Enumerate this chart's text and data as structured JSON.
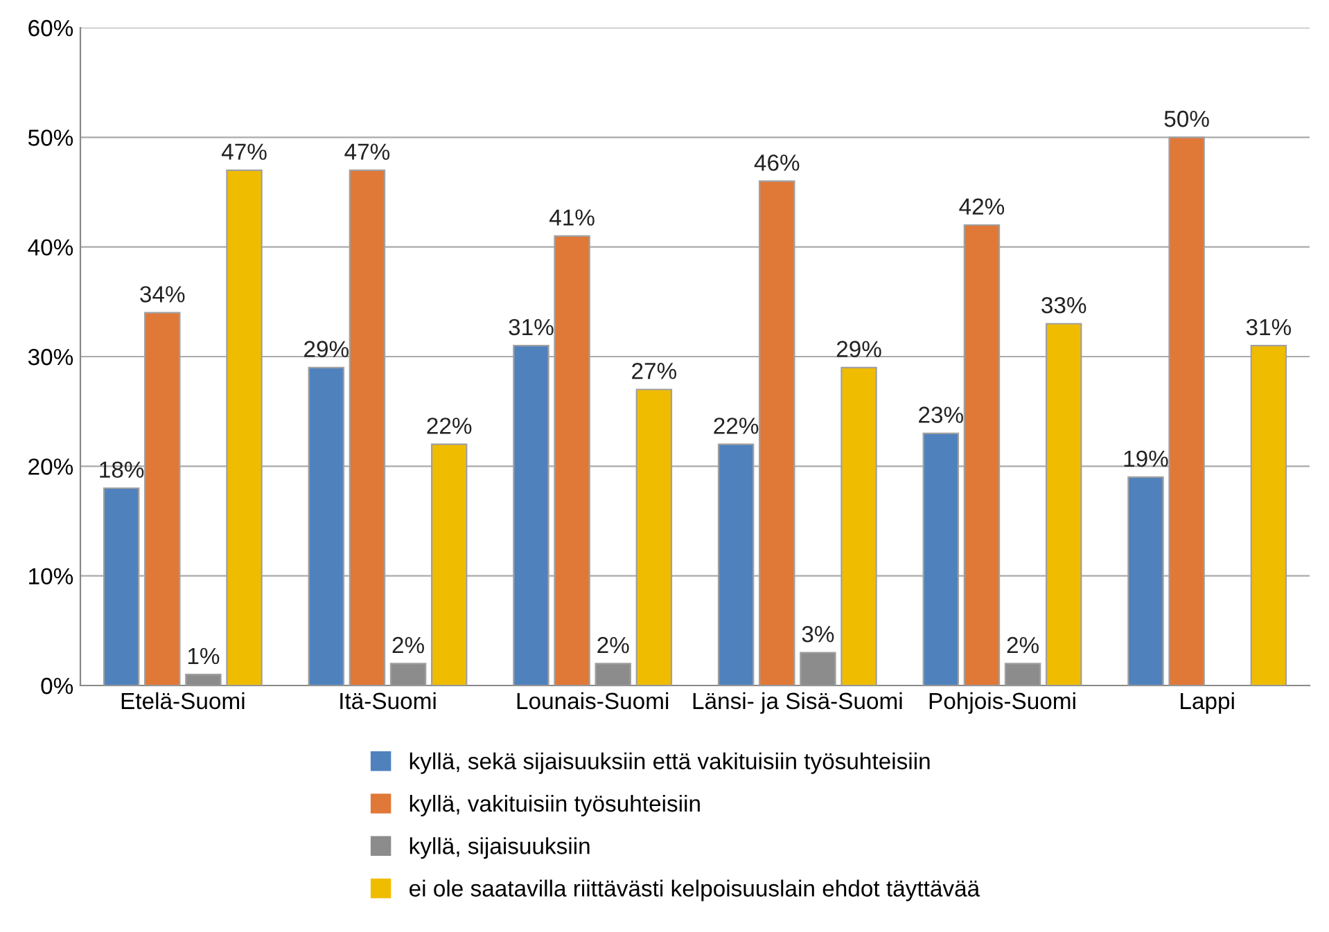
{
  "chart_data": {
    "type": "bar",
    "categories": [
      "Etelä-Suomi",
      "Itä-Suomi",
      "Lounais-Suomi",
      "Länsi- ja Sisä-Suomi",
      "Pohjois-Suomi",
      "Lappi"
    ],
    "series": [
      {
        "name": "kyllä, sekä sijaisuuksiin että vakituisiin työsuhteisiin",
        "color": "#4f81bd",
        "values": [
          18,
          29,
          31,
          22,
          23,
          19
        ],
        "value_labels": [
          "18%",
          "29%",
          "31%",
          "22%",
          "23%",
          "19%"
        ]
      },
      {
        "name": "kyllä, vakituisiin työsuhteisiin",
        "color": "#e07838",
        "values": [
          34,
          47,
          41,
          46,
          42,
          50
        ],
        "value_labels": [
          "34%",
          "47%",
          "41%",
          "46%",
          "42%",
          "50%"
        ]
      },
      {
        "name": "kyllä, sijaisuuksiin",
        "color": "#8c8c8c",
        "values": [
          1,
          2,
          2,
          3,
          2,
          null
        ],
        "value_labels": [
          "1%",
          "2%",
          "2%",
          "3%",
          "2%",
          null
        ]
      },
      {
        "name": "ei ole saatavilla riittävästi kelpoisuuslain ehdot täyttävää",
        "color": "#f0bc00",
        "values": [
          47,
          22,
          27,
          29,
          33,
          31
        ],
        "value_labels": [
          "47%",
          "22%",
          "27%",
          "29%",
          "33%",
          "31%"
        ]
      }
    ],
    "ylim": [
      0,
      60
    ],
    "yticks": [
      {
        "value": 0,
        "label": "0%"
      },
      {
        "value": 10,
        "label": "10%"
      },
      {
        "value": 20,
        "label": "20%"
      },
      {
        "value": 30,
        "label": "30%"
      },
      {
        "value": 40,
        "label": "40%"
      },
      {
        "value": 50,
        "label": "50%"
      },
      {
        "value": 60,
        "label": "60%"
      }
    ],
    "grid": "y",
    "legend": "bottom"
  }
}
